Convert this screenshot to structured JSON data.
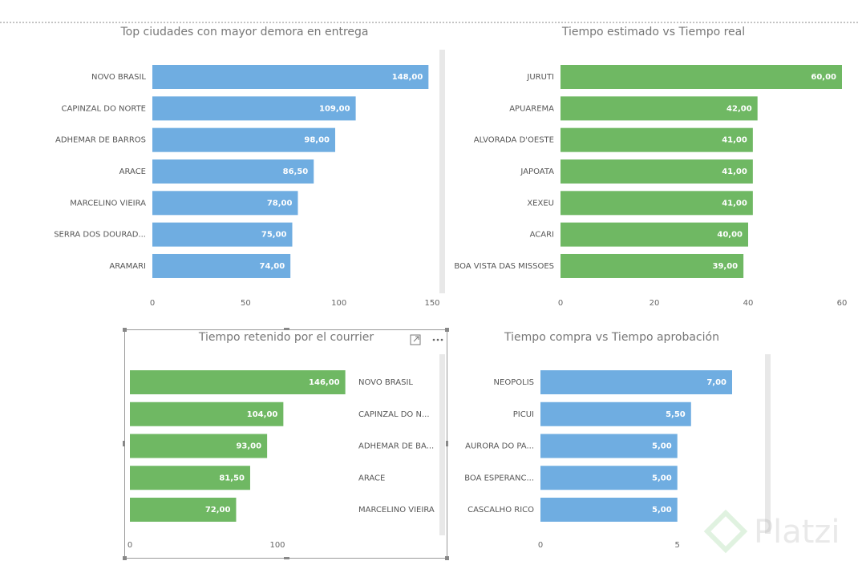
{
  "chart_data": [
    {
      "type": "bar",
      "orientation": "horizontal",
      "title": "Top ciudades con mayor demora en entrega",
      "categories": [
        "NOVO BRASIL",
        "CAPINZAL DO NORTE",
        "ADHEMAR DE BARROS",
        "ARACE",
        "MARCELINO VIEIRA",
        "SERRA DOS DOURAD...",
        "ARAMARI"
      ],
      "values": [
        148,
        109,
        98,
        86.5,
        78,
        75,
        74
      ],
      "value_labels": [
        "148,00",
        "109,00",
        "98,00",
        "86,50",
        "78,00",
        "75,00",
        "74,00"
      ],
      "color": "#6fade1",
      "xlim": [
        0,
        150
      ],
      "xticks": [
        0,
        50,
        100,
        150
      ]
    },
    {
      "type": "bar",
      "orientation": "horizontal",
      "title": "Tiempo estimado vs Tiempo real",
      "categories": [
        "JURUTI",
        "APUAREMA",
        "ALVORADA D'OESTE",
        "JAPOATA",
        "XEXEU",
        "ACARI",
        "BOA VISTA DAS MISSOES"
      ],
      "values": [
        60,
        42,
        41,
        41,
        41,
        40,
        39
      ],
      "value_labels": [
        "60,00",
        "42,00",
        "41,00",
        "41,00",
        "41,00",
        "40,00",
        "39,00"
      ],
      "color": "#6fb863",
      "xlim": [
        0,
        60
      ],
      "xticks": [
        0,
        20,
        40,
        60
      ]
    },
    {
      "type": "bar",
      "orientation": "horizontal",
      "title": "Tiempo retenido por el courrier",
      "categories": [
        "NOVO BRASIL",
        "CAPINZAL DO N...",
        "ADHEMAR DE BA...",
        "ARACE",
        "MARCELINO VIEIRA"
      ],
      "values": [
        146,
        104,
        93,
        81.5,
        72
      ],
      "value_labels": [
        "146,00",
        "104,00",
        "93,00",
        "81,50",
        "72,00"
      ],
      "color": "#6fb863",
      "xlim": [
        0,
        150
      ],
      "xticks": [
        0,
        100
      ]
    },
    {
      "type": "bar",
      "orientation": "horizontal",
      "title": "Tiempo compra vs Tiempo aprobación",
      "categories": [
        "NEOPOLIS",
        "PICUI",
        "AURORA DO PA...",
        "BOA ESPERANC...",
        "CASCALHO RICO"
      ],
      "values": [
        7,
        5.5,
        5,
        5,
        5
      ],
      "value_labels": [
        "7,00",
        "5,50",
        "5,00",
        "5,00",
        "5,00"
      ],
      "color": "#6fade1",
      "xlim": [
        0,
        7
      ],
      "xticks": [
        0,
        5
      ]
    }
  ],
  "watermark": "Platzi"
}
